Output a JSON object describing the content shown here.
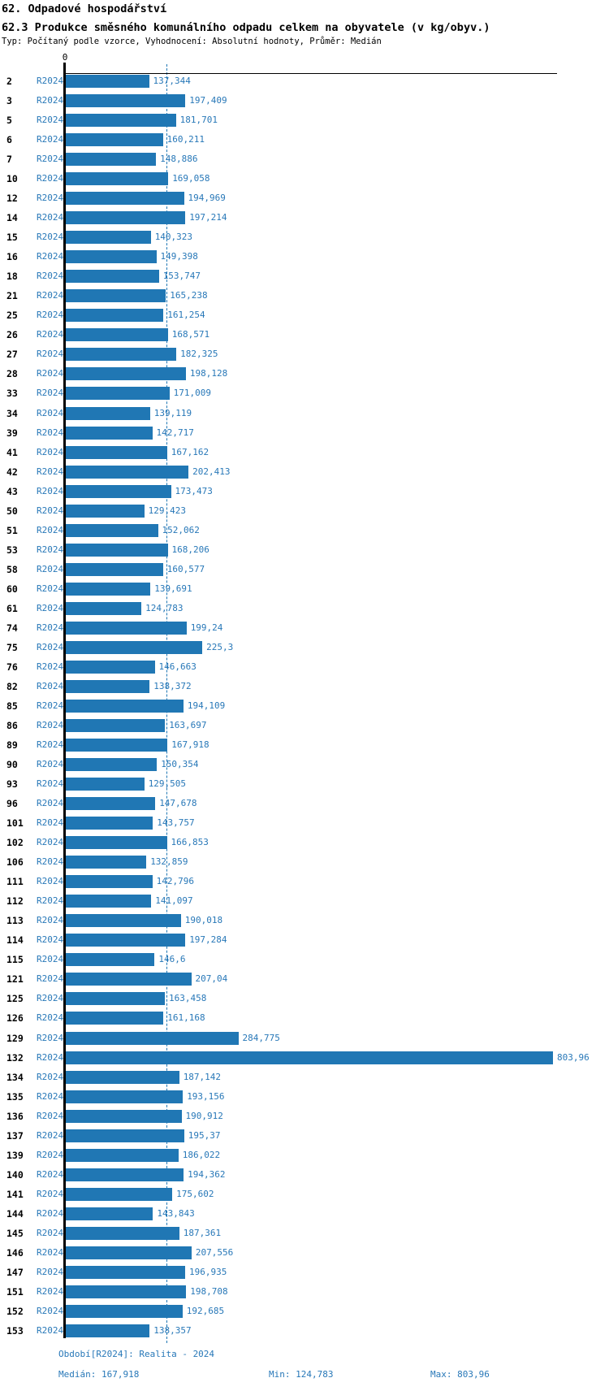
{
  "header": {
    "title": "62. Odpadové hospodářství",
    "subtitle": "62.3 Produkce směsného komunálního odpadu celkem na obyvatele (v kg/obyv.)",
    "meta": "Typ: Počítaný podle vzorce, Vyhodnocení: Absolutní hodnoty, Průměr: Medián"
  },
  "axis": {
    "zero_label": "0"
  },
  "chart_data": {
    "type": "bar",
    "orientation": "horizontal",
    "title": "62.3 Produkce směsného komunálního odpadu celkem na obyvatele (v kg/obyv.)",
    "unit": "kg/obyv.",
    "series_label": "R2024",
    "xlim": [
      0,
      810
    ],
    "grid": false,
    "median_value": 167.918,
    "bar_color": "#2077b4",
    "categories": [
      "2",
      "3",
      "5",
      "6",
      "7",
      "10",
      "12",
      "14",
      "15",
      "16",
      "18",
      "21",
      "25",
      "26",
      "27",
      "28",
      "33",
      "34",
      "39",
      "41",
      "42",
      "43",
      "50",
      "51",
      "53",
      "58",
      "60",
      "61",
      "74",
      "75",
      "76",
      "82",
      "85",
      "86",
      "89",
      "90",
      "93",
      "96",
      "101",
      "102",
      "106",
      "111",
      "112",
      "113",
      "114",
      "115",
      "121",
      "125",
      "126",
      "129",
      "132",
      "134",
      "135",
      "136",
      "137",
      "139",
      "140",
      "141",
      "144",
      "145",
      "146",
      "147",
      "151",
      "152",
      "153"
    ],
    "values": [
      137.344,
      197.409,
      181.701,
      160.211,
      148.886,
      169.058,
      194.969,
      197.214,
      140.323,
      149.398,
      153.747,
      165.238,
      161.254,
      168.571,
      182.325,
      198.128,
      171.009,
      139.119,
      142.717,
      167.162,
      202.413,
      173.473,
      129.423,
      152.062,
      168.206,
      160.577,
      139.691,
      124.783,
      199.24,
      225.3,
      146.663,
      138.372,
      194.109,
      163.697,
      167.918,
      150.354,
      129.505,
      147.678,
      143.757,
      166.853,
      132.859,
      142.796,
      141.097,
      190.018,
      197.284,
      146.6,
      207.04,
      163.458,
      161.168,
      284.775,
      803.96,
      187.142,
      193.156,
      190.912,
      195.37,
      186.022,
      194.362,
      175.602,
      143.843,
      187.361,
      207.556,
      196.935,
      198.708,
      192.685,
      138.357
    ],
    "value_labels": [
      "137,344",
      "197,409",
      "181,701",
      "160,211",
      "148,886",
      "169,058",
      "194,969",
      "197,214",
      "140,323",
      "149,398",
      "153,747",
      "165,238",
      "161,254",
      "168,571",
      "182,325",
      "198,128",
      "171,009",
      "139,119",
      "142,717",
      "167,162",
      "202,413",
      "173,473",
      "129,423",
      "152,062",
      "168,206",
      "160,577",
      "139,691",
      "124,783",
      "199,24",
      "225,3",
      "146,663",
      "138,372",
      "194,109",
      "163,697",
      "167,918",
      "150,354",
      "129,505",
      "147,678",
      "143,757",
      "166,853",
      "132,859",
      "142,796",
      "141,097",
      "190,018",
      "197,284",
      "146,6",
      "207,04",
      "163,458",
      "161,168",
      "284,775",
      "803,96",
      "187,142",
      "193,156",
      "190,912",
      "195,37",
      "186,022",
      "194,362",
      "175,602",
      "143,843",
      "187,361",
      "207,556",
      "196,935",
      "198,708",
      "192,685",
      "138,357"
    ]
  },
  "footer": {
    "period": "Období[R2024]: Realita - 2024",
    "median": "Medián: 167,918",
    "min": "Min: 124,783",
    "max": "Max: 803,96"
  },
  "colors": {
    "bar": "#2077b4",
    "blue_text": "#2878b8",
    "axis": "#000000",
    "median_line": "#1f77b4"
  }
}
